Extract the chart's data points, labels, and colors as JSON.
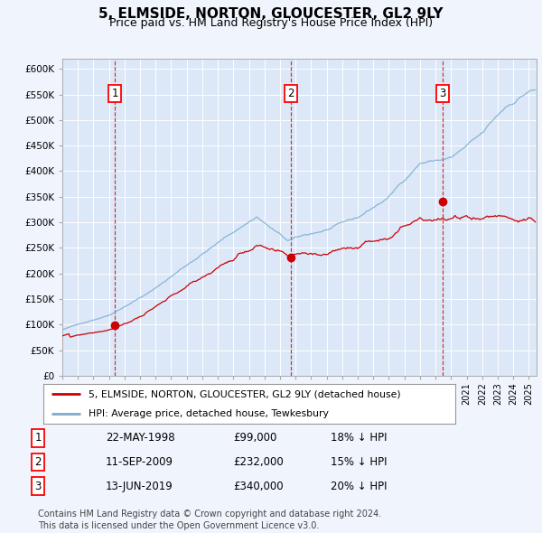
{
  "title": "5, ELMSIDE, NORTON, GLOUCESTER, GL2 9LY",
  "subtitle": "Price paid vs. HM Land Registry's House Price Index (HPI)",
  "title_fontsize": 11,
  "subtitle_fontsize": 9,
  "background_color": "#f0f4fc",
  "plot_bg_color": "#dce8f8",
  "grid_color": "#ffffff",
  "red_line_color": "#cc0000",
  "blue_line_color": "#7aabcf",
  "sale_marker_color": "#cc0000",
  "sale_dates": [
    1998.39,
    2009.71,
    2019.46
  ],
  "sale_prices": [
    99000,
    232000,
    340000
  ],
  "sale_labels": [
    "1",
    "2",
    "3"
  ],
  "vline_color": "#cc0000",
  "ylim": [
    0,
    620000
  ],
  "xlim_start": 1995.0,
  "xlim_end": 2025.5,
  "yticks": [
    0,
    50000,
    100000,
    150000,
    200000,
    250000,
    300000,
    350000,
    400000,
    450000,
    500000,
    550000,
    600000
  ],
  "ytick_labels": [
    "£0",
    "£50K",
    "£100K",
    "£150K",
    "£200K",
    "£250K",
    "£300K",
    "£350K",
    "£400K",
    "£450K",
    "£500K",
    "£550K",
    "£600K"
  ],
  "legend_entries": [
    "5, ELMSIDE, NORTON, GLOUCESTER, GL2 9LY (detached house)",
    "HPI: Average price, detached house, Tewkesbury"
  ],
  "table_rows": [
    [
      "1",
      "22-MAY-1998",
      "£99,000",
      "18% ↓ HPI"
    ],
    [
      "2",
      "11-SEP-2009",
      "£232,000",
      "15% ↓ HPI"
    ],
    [
      "3",
      "13-JUN-2019",
      "£340,000",
      "20% ↓ HPI"
    ]
  ],
  "footnote": "Contains HM Land Registry data © Crown copyright and database right 2024.\nThis data is licensed under the Open Government Licence v3.0.",
  "footnote_fontsize": 7
}
